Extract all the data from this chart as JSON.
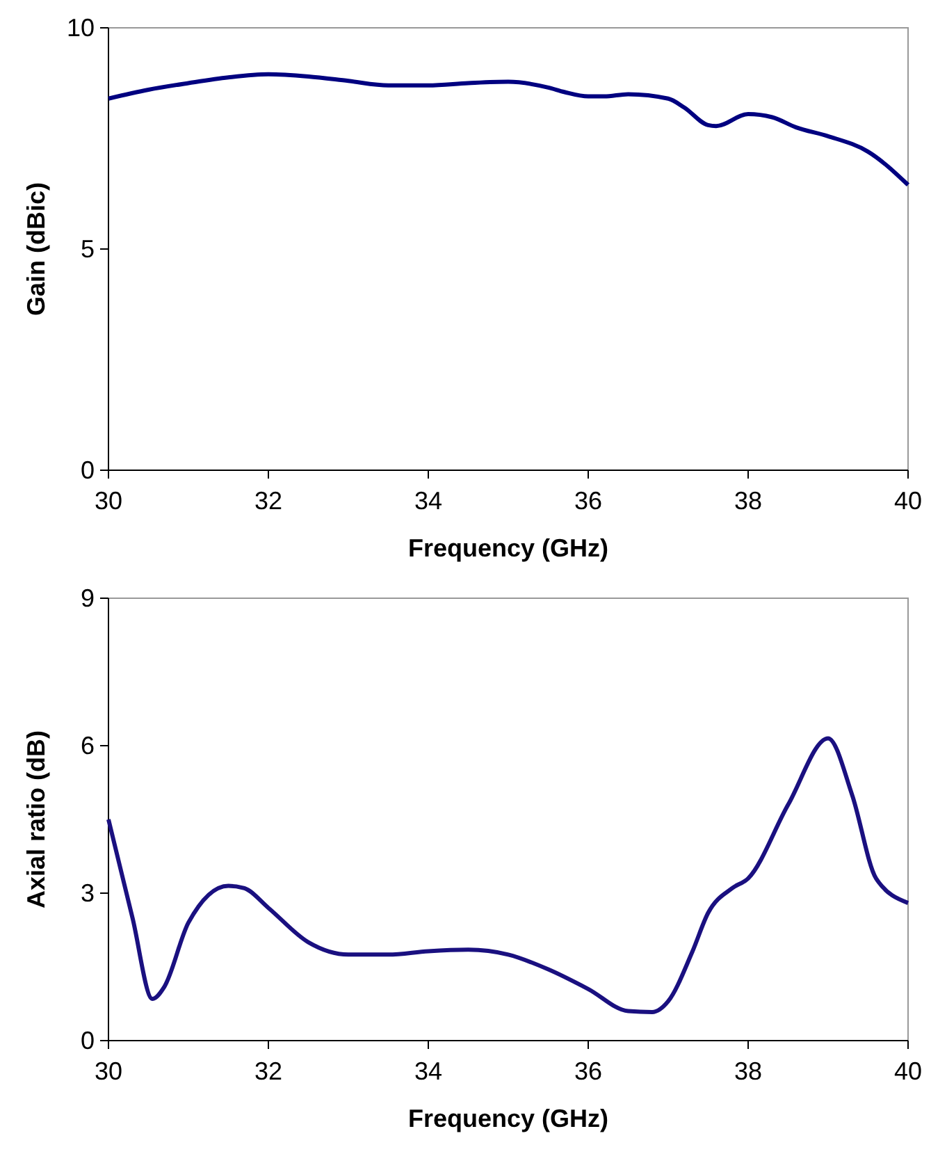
{
  "chart_data": [
    {
      "type": "line",
      "xlabel": "Frequency (GHz)",
      "ylabel": "Gain (dBic)",
      "xlim": [
        30,
        40
      ],
      "xticks": [
        30,
        32,
        34,
        36,
        38,
        40
      ],
      "ylim": [
        0,
        10
      ],
      "yticks": [
        0,
        5,
        10
      ],
      "grid": false,
      "marker": "none",
      "line_style": "solid",
      "series": [
        {
          "color": "#000080",
          "x": [
            30,
            30.5,
            31,
            31.5,
            32,
            32.5,
            33,
            33.5,
            34,
            34.5,
            35,
            35.5,
            35.7,
            36,
            36.2,
            36.5,
            37,
            37.2,
            37.5,
            37.6,
            38,
            38.3,
            38.6,
            39,
            39.5,
            40
          ],
          "values": [
            8.4,
            8.6,
            8.75,
            8.88,
            8.95,
            8.9,
            8.8,
            8.7,
            8.7,
            8.75,
            8.78,
            8.65,
            8.55,
            8.45,
            8.45,
            8.5,
            8.4,
            8.2,
            7.8,
            7.78,
            8.05,
            7.98,
            7.75,
            7.55,
            7.2,
            6.45
          ]
        }
      ]
    },
    {
      "type": "line",
      "xlabel": "Frequency (GHz)",
      "ylabel": "Axial ratio (dB)",
      "xlim": [
        30,
        40
      ],
      "xticks": [
        30,
        32,
        34,
        36,
        38,
        40
      ],
      "ylim": [
        0,
        9
      ],
      "yticks": [
        0,
        3,
        6,
        9
      ],
      "grid": false,
      "marker": "none",
      "line_style": "solid",
      "series": [
        {
          "color": "#1a1080",
          "x": [
            30,
            30.3,
            30.55,
            30.7,
            31,
            31.5,
            31.7,
            32,
            32.5,
            33,
            33.5,
            34,
            34.5,
            35,
            35.5,
            36,
            36.5,
            36.8,
            37,
            37.3,
            37.5,
            37.8,
            38,
            38.5,
            39,
            39.3,
            39.6,
            40
          ],
          "values": [
            4.5,
            2.5,
            0.85,
            1.1,
            2.4,
            3.15,
            3.1,
            2.7,
            2.0,
            1.75,
            1.75,
            1.82,
            1.85,
            1.75,
            1.45,
            1.05,
            0.6,
            0.58,
            0.8,
            1.8,
            2.6,
            3.1,
            3.3,
            4.8,
            6.15,
            5.0,
            3.3,
            2.8
          ]
        }
      ]
    }
  ]
}
